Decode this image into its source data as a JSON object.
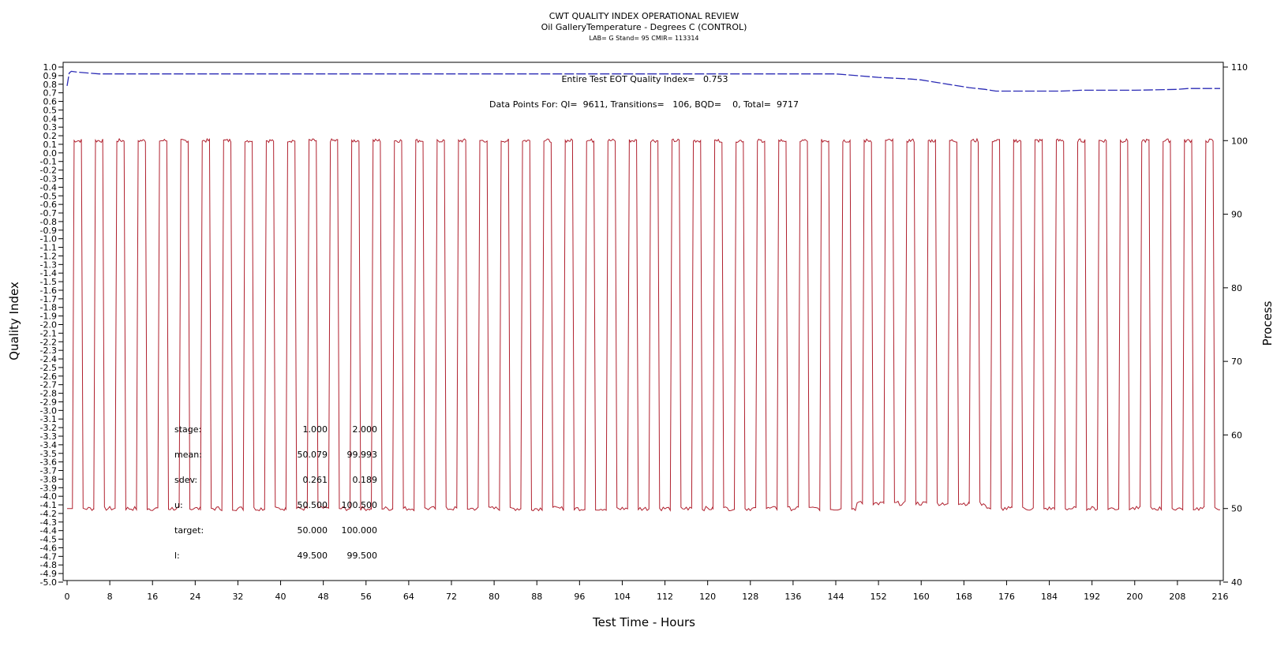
{
  "chart_data": {
    "type": "line",
    "title": "CWT QUALITY INDEX OPERATIONAL REVIEW",
    "subtitle": "Oil GalleryTemperature - Degrees C (CONTROL)",
    "subtitle2": "LAB= G Stand= 95 CMIR= 113314",
    "xlabel": "Test Time - Hours",
    "ylabel_left": "Quality Index",
    "ylabel_right": "Process",
    "xlim": [
      0,
      216
    ],
    "ylim_left": [
      -5.0,
      1.0
    ],
    "ylim_right": [
      40,
      110
    ],
    "x_ticks": [
      "0",
      "8",
      "16",
      "24",
      "32",
      "40",
      "48",
      "56",
      "64",
      "72",
      "80",
      "88",
      "96",
      "104",
      "112",
      "120",
      "128",
      "136",
      "144",
      "152",
      "160",
      "168",
      "176",
      "184",
      "192",
      "200",
      "208",
      "216"
    ],
    "y_left_ticks": [
      "1.0",
      "0.9",
      "0.8",
      "0.7",
      "0.6",
      "0.5",
      "0.4",
      "0.3",
      "0.2",
      "0.1",
      "0.0",
      "-0.1",
      "-0.2",
      "-0.3",
      "-0.4",
      "-0.5",
      "-0.6",
      "-0.7",
      "-0.8",
      "-0.9",
      "-1.0",
      "-1.1",
      "-1.2",
      "-1.3",
      "-1.4",
      "-1.5",
      "-1.6",
      "-1.7",
      "-1.8",
      "-1.9",
      "-2.0",
      "-2.1",
      "-2.2",
      "-2.3",
      "-2.4",
      "-2.5",
      "-2.6",
      "-2.7",
      "-2.8",
      "-2.9",
      "-3.0",
      "-3.1",
      "-3.2",
      "-3.3",
      "-3.4",
      "-3.5",
      "-3.6",
      "-3.7",
      "-3.8",
      "-3.9",
      "-4.0",
      "-4.1",
      "-4.2",
      "-4.3",
      "-4.4",
      "-4.5",
      "-4.6",
      "-4.7",
      "-4.8",
      "-4.9",
      "-5.0"
    ],
    "y_right_ticks": [
      "40",
      "50",
      "60",
      "70",
      "80",
      "90",
      "100",
      "110"
    ],
    "annotation_eot": "Entire Test EOT Quality Index=   0.753",
    "annotation_points": "Data Points For: QI=  9611, Transitions=   106, BQD=    0, Total=  9717",
    "stats": [
      {
        "label": "stage:",
        "v1": "1.000",
        "v2": "2.000"
      },
      {
        "label": "mean:",
        "v1": "50.079",
        "v2": "99.993"
      },
      {
        "label": "sdev:",
        "v1": "0.261",
        "v2": "0.189"
      },
      {
        "label": "u:",
        "v1": "50.500",
        "v2": "100.500"
      },
      {
        "label": "target:",
        "v1": "50.000",
        "v2": "100.000"
      },
      {
        "label": "l:",
        "v1": "49.500",
        "v2": "99.500"
      }
    ],
    "series": [
      {
        "axis": "left",
        "color": "#2b2bb5",
        "dash": "dashed",
        "x": [
          0.0,
          0.4,
          0.8,
          2.0,
          4.0,
          6.0,
          8.0,
          20,
          40,
          60,
          80,
          100,
          120,
          144,
          148,
          152,
          158,
          160,
          163,
          166,
          169,
          172,
          174,
          180,
          186,
          190,
          200,
          208,
          210,
          216
        ],
        "values": [
          0.78,
          0.93,
          0.95,
          0.94,
          0.93,
          0.92,
          0.92,
          0.92,
          0.92,
          0.92,
          0.92,
          0.92,
          0.92,
          0.92,
          0.9,
          0.88,
          0.86,
          0.85,
          0.82,
          0.79,
          0.76,
          0.74,
          0.72,
          0.72,
          0.72,
          0.73,
          0.73,
          0.74,
          0.75,
          0.75
        ]
      },
      {
        "axis": "right",
        "color": "#b0202e",
        "dash": "solid",
        "cycle_period_hours": 4.0,
        "cycle_start_hours": 1.0,
        "cycle_count": 54,
        "high_level": 100.0,
        "low_level": 50.0,
        "drift_start_hours": 148,
        "drift_end_hours": 172,
        "drift_low_level": 50.7,
        "dip_at_hours": 171.5,
        "dip_to": 98.5
      }
    ]
  }
}
